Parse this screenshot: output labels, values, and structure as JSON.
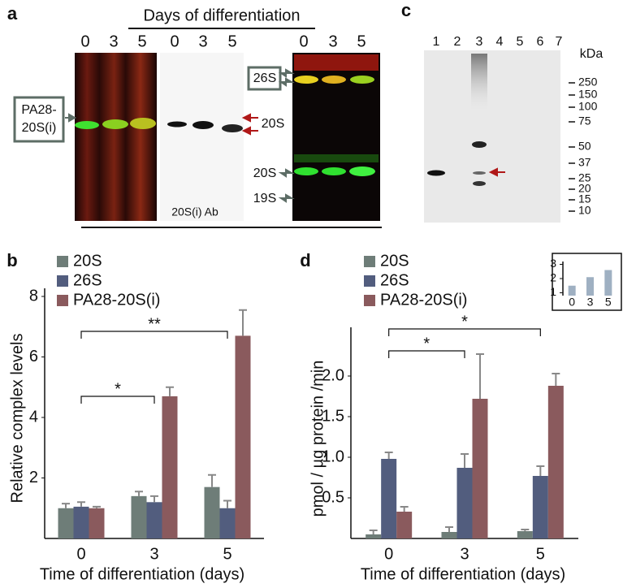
{
  "panels": {
    "a": {
      "letter": "a",
      "header": "Days of differentiation",
      "lanes": [
        "0",
        "3",
        "5",
        "0",
        "3",
        "5",
        "0",
        "3",
        "5"
      ],
      "box_label": [
        "PA28-",
        "20S(i)"
      ],
      "blot2_band": "20S",
      "antibody": "20S(i) Ab",
      "blot3_box": "26S",
      "blot3_mid": "20S",
      "blot3_low": "19S"
    },
    "c": {
      "letter": "c",
      "lanes": [
        "1",
        "2",
        "3",
        "4",
        "5",
        "6",
        "7"
      ],
      "unit": "kDa",
      "markers": [
        "250",
        "150",
        "100",
        "75",
        "50",
        "37",
        "25",
        "20",
        "15",
        "10"
      ]
    }
  },
  "chart_data": [
    {
      "type": "bar",
      "label": "b",
      "y_label": "Relative complex levels",
      "x_label": "Time of differentiation (days)",
      "categories": [
        "0",
        "3",
        "5"
      ],
      "series": [
        {
          "name": "20S",
          "color": "#6e7d78",
          "values": [
            1.0,
            1.4,
            1.7
          ],
          "errors": [
            0.15,
            0.15,
            0.4
          ]
        },
        {
          "name": "26S",
          "color": "#525d7e",
          "values": [
            1.05,
            1.2,
            1.0
          ],
          "errors": [
            0.15,
            0.2,
            0.25
          ]
        },
        {
          "name": "PA28-20S(i)",
          "color": "#8a5a5d",
          "values": [
            1.0,
            4.7,
            6.7
          ],
          "errors": [
            0.05,
            0.3,
            0.85
          ]
        }
      ],
      "ylim": [
        0,
        8
      ],
      "yticks": [
        2,
        4,
        6,
        8
      ],
      "annotations": [
        {
          "text": "**"
        },
        {
          "text": "*"
        }
      ]
    },
    {
      "type": "bar",
      "label": "d",
      "y_label": "pmol / µg protein /min",
      "x_label": "Time of differentiation (days)",
      "categories": [
        "0",
        "3",
        "5"
      ],
      "series": [
        {
          "name": "20S",
          "color": "#6e7d78",
          "values": [
            0.05,
            0.08,
            0.09
          ],
          "errors": [
            0.05,
            0.06,
            0.02
          ]
        },
        {
          "name": "26S",
          "color": "#525d7e",
          "values": [
            0.98,
            0.87,
            0.77
          ],
          "errors": [
            0.08,
            0.17,
            0.12
          ]
        },
        {
          "name": "PA28-20S(i)",
          "color": "#8a5a5d",
          "values": [
            0.33,
            1.72,
            1.88
          ],
          "errors": [
            0.06,
            0.55,
            0.15
          ]
        }
      ],
      "ylim": [
        0,
        2.5
      ],
      "yticks": [
        0.5,
        {
          "value": 1,
          "label": "1.0"
        },
        1.5,
        {
          "value": 2,
          "label": "2.0"
        }
      ],
      "annotations": [
        {
          "text": "*"
        },
        {
          "text": "*"
        }
      ]
    },
    {
      "type": "bar",
      "categories": [
        "0",
        "3",
        "5"
      ],
      "values": [
        1.5,
        2.1,
        2.6
      ],
      "color": "#9fb0c2",
      "ylim": [
        0.8,
        3.2
      ],
      "yticks": [
        1,
        2,
        3
      ]
    }
  ]
}
